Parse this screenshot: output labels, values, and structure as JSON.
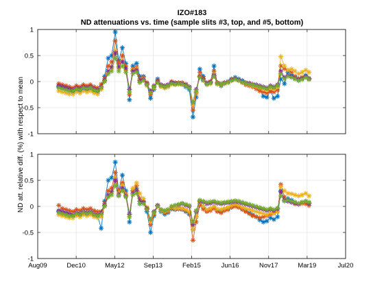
{
  "chart_data": {
    "type": "line",
    "title": "IZO#183",
    "subtitle": "ND attenuations vs. time (sample slits #3, top, and #5, bottom)",
    "ylabel": "ND att. relative diff. (%) with respect to mean",
    "x_tick_labels": [
      "Aug09",
      "Dec10",
      "May12",
      "Sep13",
      "Feb15",
      "Jun16",
      "Nov17",
      "Mar19",
      "Jul20"
    ],
    "xlim": [
      "2009-08-01",
      "2020-07-01"
    ],
    "ylim": [
      -1,
      1
    ],
    "y_ticks": [
      -1,
      -0.5,
      0,
      0.5,
      1
    ],
    "y_tick_labels": [
      "-1",
      "-0.5",
      "0",
      "0.5",
      "1"
    ],
    "grid": true,
    "marker": "asterisk",
    "series_colors": [
      "#0072BD",
      "#D95319",
      "#EDB120",
      "#7E2F8E",
      "#77AC30"
    ],
    "panels": [
      {
        "panel": "top",
        "x": [
          "2010-05-01",
          "2010-06-15",
          "2010-08-01",
          "2010-09-15",
          "2010-11-01",
          "2010-12-15",
          "2011-02-01",
          "2011-03-15",
          "2011-05-01",
          "2011-06-15",
          "2011-08-01",
          "2011-09-15",
          "2011-11-01",
          "2011-12-15",
          "2012-02-01",
          "2012-03-15",
          "2012-05-01",
          "2012-06-15",
          "2012-08-01",
          "2012-09-15",
          "2012-11-01",
          "2012-12-15",
          "2013-02-01",
          "2013-03-15",
          "2013-05-01",
          "2013-06-15",
          "2013-08-01",
          "2013-09-15",
          "2013-11-01",
          "2013-12-15",
          "2014-02-01",
          "2014-03-15",
          "2014-05-01",
          "2014-06-15",
          "2014-08-01",
          "2014-09-15",
          "2014-11-01",
          "2014-12-15",
          "2015-02-01",
          "2015-03-15",
          "2015-05-01",
          "2015-06-15",
          "2015-08-01",
          "2015-09-15",
          "2015-11-01",
          "2015-12-15",
          "2016-02-01",
          "2016-03-15",
          "2016-05-01",
          "2016-06-15",
          "2016-08-01",
          "2016-09-15",
          "2016-11-01",
          "2016-12-15",
          "2017-02-01",
          "2017-03-15",
          "2017-05-01",
          "2017-06-15",
          "2017-08-01",
          "2017-09-15",
          "2017-11-01",
          "2017-12-15",
          "2018-02-01",
          "2018-03-15",
          "2018-05-01",
          "2018-06-15",
          "2018-08-01",
          "2018-09-15",
          "2018-11-01",
          "2018-12-15",
          "2019-02-01",
          "2019-03-15"
        ],
        "series": [
          {
            "values": [
              -0.1,
              -0.12,
              -0.16,
              -0.18,
              -0.2,
              -0.16,
              -0.18,
              -0.14,
              -0.16,
              -0.14,
              -0.18,
              -0.2,
              -0.12,
              0.1,
              0.45,
              0.5,
              0.95,
              0.4,
              0.65,
              0.35,
              -0.35,
              0.3,
              0.35,
              0.1,
              0.1,
              -0.05,
              -0.32,
              -0.15,
              0.05,
              -0.08,
              -0.12,
              -0.1,
              -0.02,
              -0.05,
              -0.04,
              -0.05,
              -0.1,
              -0.15,
              -0.68,
              -0.3,
              0.24,
              0.1,
              -0.05,
              -0.02,
              0.3,
              -0.05,
              -0.08,
              -0.04,
              -0.02,
              0.05,
              0.08,
              0.05,
              0.02,
              -0.02,
              -0.04,
              -0.06,
              -0.1,
              -0.15,
              -0.28,
              -0.3,
              -0.18,
              -0.32,
              -0.28,
              0.05,
              -0.04,
              0.18,
              0.12,
              0.08,
              0.02,
              0.05,
              0.12,
              0.06
            ]
          },
          {
            "values": [
              -0.04,
              -0.06,
              -0.08,
              -0.1,
              -0.12,
              -0.08,
              -0.1,
              -0.06,
              -0.08,
              -0.06,
              -0.1,
              -0.12,
              -0.05,
              0.05,
              0.3,
              0.38,
              0.78,
              0.35,
              0.5,
              0.3,
              -0.25,
              0.25,
              0.28,
              0.05,
              0.08,
              -0.02,
              -0.25,
              -0.1,
              0.02,
              -0.06,
              -0.08,
              -0.06,
              0.0,
              -0.02,
              -0.02,
              -0.02,
              -0.05,
              -0.1,
              -0.55,
              -0.22,
              0.18,
              0.06,
              -0.02,
              0.0,
              0.2,
              -0.02,
              -0.05,
              -0.02,
              0.0,
              0.04,
              0.05,
              0.02,
              -0.02,
              -0.06,
              -0.08,
              -0.1,
              -0.14,
              -0.18,
              -0.2,
              -0.22,
              -0.18,
              -0.2,
              -0.16,
              0.3,
              0.25,
              0.22,
              0.18,
              0.1,
              0.06,
              0.08,
              0.08,
              0.05
            ]
          },
          {
            "values": [
              -0.18,
              -0.2,
              -0.22,
              -0.24,
              -0.24,
              -0.2,
              -0.22,
              -0.18,
              -0.2,
              -0.18,
              -0.22,
              -0.24,
              -0.15,
              0.0,
              0.18,
              0.25,
              0.6,
              0.25,
              0.4,
              0.22,
              -0.2,
              0.22,
              0.25,
              0.0,
              0.05,
              -0.08,
              -0.2,
              -0.12,
              -0.02,
              -0.1,
              -0.12,
              -0.1,
              -0.05,
              -0.06,
              -0.05,
              -0.06,
              -0.08,
              -0.12,
              -0.45,
              -0.2,
              0.12,
              0.02,
              -0.06,
              -0.04,
              0.15,
              -0.05,
              -0.06,
              -0.04,
              -0.02,
              0.02,
              0.04,
              0.02,
              -0.02,
              -0.04,
              -0.06,
              -0.08,
              -0.1,
              -0.12,
              -0.14,
              -0.16,
              -0.12,
              -0.14,
              -0.1,
              0.48,
              0.3,
              0.22,
              0.24,
              0.2,
              0.15,
              0.18,
              0.22,
              0.18
            ]
          },
          {
            "values": [
              -0.08,
              -0.1,
              -0.12,
              -0.14,
              -0.16,
              -0.12,
              -0.14,
              -0.1,
              -0.12,
              -0.1,
              -0.14,
              -0.16,
              -0.1,
              0.02,
              0.2,
              0.28,
              0.55,
              0.28,
              0.38,
              0.25,
              -0.15,
              0.2,
              0.22,
              0.02,
              0.04,
              -0.04,
              -0.18,
              -0.08,
              0.0,
              -0.06,
              -0.08,
              -0.06,
              -0.02,
              -0.03,
              -0.03,
              -0.04,
              -0.06,
              -0.1,
              -0.4,
              -0.15,
              0.1,
              0.04,
              -0.03,
              -0.01,
              0.12,
              -0.03,
              -0.04,
              -0.02,
              0.0,
              0.03,
              0.05,
              0.03,
              0.0,
              -0.02,
              -0.03,
              -0.05,
              -0.06,
              -0.08,
              -0.1,
              -0.12,
              -0.08,
              -0.1,
              -0.06,
              0.2,
              0.08,
              0.12,
              0.1,
              0.06,
              0.04,
              0.06,
              0.1,
              0.06
            ]
          },
          {
            "values": [
              -0.12,
              -0.14,
              -0.16,
              -0.18,
              -0.18,
              -0.14,
              -0.16,
              -0.12,
              -0.14,
              -0.12,
              -0.16,
              -0.18,
              -0.12,
              0.0,
              0.15,
              0.2,
              0.45,
              0.2,
              0.3,
              0.18,
              -0.2,
              0.15,
              0.18,
              -0.02,
              0.02,
              -0.06,
              -0.22,
              -0.1,
              -0.02,
              -0.08,
              -0.1,
              -0.08,
              -0.04,
              -0.05,
              -0.04,
              -0.05,
              -0.08,
              -0.12,
              -0.4,
              -0.18,
              0.08,
              0.02,
              -0.05,
              -0.03,
              0.1,
              -0.04,
              -0.05,
              -0.03,
              -0.01,
              0.02,
              0.04,
              0.02,
              -0.01,
              -0.03,
              -0.05,
              -0.06,
              -0.08,
              -0.1,
              -0.12,
              -0.14,
              -0.1,
              -0.12,
              -0.08,
              0.15,
              0.05,
              0.1,
              0.08,
              0.05,
              0.02,
              0.04,
              0.08,
              0.04
            ]
          }
        ]
      },
      {
        "panel": "bottom",
        "x": [
          "2010-05-01",
          "2010-06-15",
          "2010-08-01",
          "2010-09-15",
          "2010-11-01",
          "2010-12-15",
          "2011-02-01",
          "2011-03-15",
          "2011-05-01",
          "2011-06-15",
          "2011-08-01",
          "2011-09-15",
          "2011-11-01",
          "2011-12-15",
          "2012-02-01",
          "2012-03-15",
          "2012-05-01",
          "2012-06-15",
          "2012-08-01",
          "2012-09-15",
          "2012-11-01",
          "2012-12-15",
          "2013-02-01",
          "2013-03-15",
          "2013-05-01",
          "2013-06-15",
          "2013-08-01",
          "2013-09-15",
          "2013-11-01",
          "2013-12-15",
          "2014-02-01",
          "2014-03-15",
          "2014-05-01",
          "2014-06-15",
          "2014-08-01",
          "2014-09-15",
          "2014-11-01",
          "2014-12-15",
          "2015-02-01",
          "2015-03-15",
          "2015-05-01",
          "2015-06-15",
          "2015-08-01",
          "2015-09-15",
          "2015-11-01",
          "2015-12-15",
          "2016-02-01",
          "2016-03-15",
          "2016-05-01",
          "2016-06-15",
          "2016-08-01",
          "2016-09-15",
          "2016-11-01",
          "2016-12-15",
          "2017-02-01",
          "2017-03-15",
          "2017-05-01",
          "2017-06-15",
          "2017-08-01",
          "2017-09-15",
          "2017-11-01",
          "2017-12-15",
          "2018-02-01",
          "2018-03-15",
          "2018-05-01",
          "2018-06-15",
          "2018-08-01",
          "2018-09-15",
          "2018-11-01",
          "2018-12-15",
          "2019-02-01",
          "2019-03-15"
        ],
        "series": [
          {
            "values": [
              -0.1,
              -0.12,
              -0.14,
              -0.16,
              -0.18,
              -0.14,
              -0.16,
              -0.12,
              -0.14,
              -0.12,
              -0.16,
              -0.18,
              -0.42,
              0.1,
              0.5,
              0.55,
              0.85,
              0.3,
              0.6,
              0.3,
              -0.3,
              0.3,
              0.35,
              0.05,
              0.08,
              -0.1,
              -0.5,
              -0.18,
              0.02,
              -0.1,
              -0.15,
              -0.12,
              -0.05,
              -0.06,
              -0.05,
              -0.06,
              -0.1,
              -0.15,
              -0.45,
              -0.2,
              0.05,
              -0.02,
              -0.08,
              -0.05,
              0.0,
              -0.08,
              -0.1,
              -0.06,
              -0.04,
              0.0,
              0.02,
              0.0,
              -0.04,
              -0.08,
              -0.12,
              -0.16,
              -0.2,
              -0.26,
              -0.3,
              -0.28,
              -0.22,
              -0.25,
              -0.2,
              0.3,
              0.12,
              0.15,
              0.12,
              0.08,
              0.05,
              0.08,
              0.1,
              0.06
            ]
          },
          {
            "values": [
              0.02,
              -0.04,
              -0.06,
              -0.08,
              -0.1,
              -0.06,
              -0.08,
              -0.04,
              -0.06,
              -0.04,
              -0.08,
              -0.1,
              -0.1,
              0.05,
              0.3,
              0.35,
              0.65,
              0.3,
              0.45,
              0.25,
              -0.15,
              0.3,
              0.4,
              0.15,
              0.1,
              -0.05,
              -0.35,
              -0.15,
              0.0,
              -0.08,
              -0.12,
              -0.1,
              -0.03,
              -0.05,
              -0.04,
              -0.05,
              -0.08,
              -0.12,
              -0.65,
              -0.3,
              0.02,
              -0.05,
              -0.1,
              -0.08,
              -0.04,
              -0.1,
              -0.12,
              -0.08,
              -0.06,
              -0.02,
              0.0,
              -0.02,
              -0.06,
              -0.1,
              -0.14,
              -0.18,
              -0.2,
              -0.22,
              -0.2,
              -0.18,
              -0.15,
              -0.12,
              -0.1,
              0.42,
              0.18,
              0.1,
              0.08,
              0.05,
              0.04,
              0.06,
              0.05,
              0.02
            ]
          },
          {
            "values": [
              -0.16,
              -0.18,
              -0.2,
              -0.22,
              -0.22,
              -0.18,
              -0.2,
              -0.16,
              -0.18,
              -0.16,
              -0.2,
              -0.22,
              -0.2,
              0.0,
              0.2,
              0.25,
              0.55,
              0.25,
              0.4,
              0.22,
              -0.2,
              0.35,
              0.45,
              0.25,
              0.15,
              -0.02,
              -0.3,
              -0.12,
              0.02,
              -0.08,
              -0.1,
              -0.08,
              -0.02,
              -0.04,
              -0.03,
              -0.04,
              -0.06,
              -0.1,
              -0.45,
              -0.2,
              0.08,
              0.0,
              -0.06,
              -0.04,
              0.0,
              -0.05,
              -0.06,
              -0.04,
              -0.02,
              0.02,
              0.04,
              0.02,
              -0.02,
              -0.04,
              -0.06,
              -0.08,
              -0.1,
              -0.12,
              -0.14,
              -0.16,
              -0.12,
              -0.14,
              -0.1,
              0.38,
              0.3,
              0.25,
              0.24,
              0.22,
              0.2,
              0.22,
              0.25,
              0.2
            ]
          },
          {
            "values": [
              -0.08,
              -0.1,
              -0.12,
              -0.14,
              -0.16,
              -0.12,
              -0.14,
              -0.1,
              -0.12,
              -0.1,
              -0.14,
              -0.16,
              -0.12,
              0.02,
              0.22,
              0.28,
              0.5,
              0.22,
              0.35,
              0.2,
              -0.15,
              0.25,
              0.3,
              0.1,
              0.08,
              -0.04,
              -0.25,
              -0.1,
              0.02,
              -0.06,
              -0.08,
              -0.06,
              0.0,
              0.02,
              0.03,
              0.05,
              0.02,
              0.0,
              -0.35,
              -0.1,
              0.1,
              0.08,
              0.05,
              0.06,
              0.08,
              0.06,
              0.05,
              0.06,
              0.07,
              0.08,
              0.09,
              0.08,
              0.06,
              0.04,
              0.02,
              0.0,
              -0.02,
              -0.04,
              -0.06,
              -0.08,
              -0.06,
              -0.08,
              -0.05,
              0.28,
              0.12,
              0.1,
              0.08,
              0.06,
              0.05,
              0.08,
              0.1,
              0.06
            ]
          },
          {
            "values": [
              -0.12,
              -0.14,
              -0.16,
              -0.18,
              -0.18,
              -0.14,
              -0.16,
              -0.12,
              -0.14,
              -0.12,
              -0.16,
              -0.18,
              -0.15,
              0.0,
              0.18,
              0.22,
              0.4,
              0.2,
              0.3,
              0.18,
              -0.2,
              0.22,
              0.25,
              0.05,
              0.05,
              -0.06,
              -0.25,
              -0.12,
              0.0,
              -0.06,
              -0.08,
              -0.06,
              0.0,
              0.02,
              0.04,
              0.06,
              0.04,
              0.02,
              -0.3,
              -0.08,
              0.12,
              0.1,
              0.08,
              0.09,
              0.1,
              0.08,
              0.07,
              0.08,
              0.09,
              0.1,
              0.11,
              0.1,
              0.08,
              0.06,
              0.04,
              0.02,
              0.0,
              -0.02,
              -0.04,
              -0.06,
              -0.04,
              -0.06,
              -0.03,
              0.2,
              0.1,
              0.12,
              0.1,
              0.08,
              0.06,
              0.08,
              0.1,
              0.08
            ]
          }
        ]
      }
    ]
  }
}
